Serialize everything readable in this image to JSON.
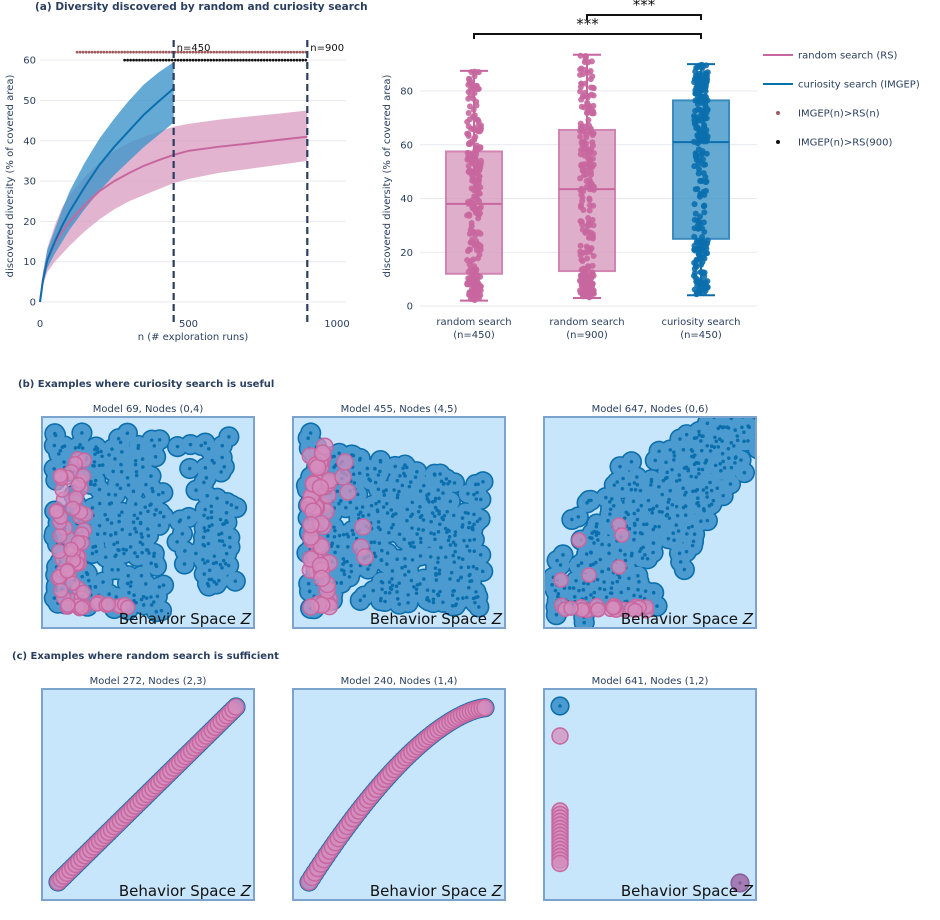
{
  "colors": {
    "rs": "#c8679f",
    "rs_fill": "#d89bbf",
    "imgep": "#0b6fae",
    "imgep_fill": "#3f95c9",
    "dot_rs": "#9e5a5a",
    "dot_900": "#111111",
    "panel_bg": "#c7e5fb",
    "panel_border": "#7ba3cd",
    "grid": "#e6e9ef",
    "text": "#2a3f5f",
    "vline": "#2a3f5f"
  },
  "section_a": {
    "title": "(a) Diversity discovered by random and curiosity search"
  },
  "section_b": {
    "title": "(b) Examples where curiosity search is useful"
  },
  "section_c": {
    "title": "(c) Examples where random search is sufficient"
  },
  "legend": [
    {
      "label": "random search (RS)",
      "marker": "line",
      "color": "#c8679f"
    },
    {
      "label": "curiosity search (IMGEP)",
      "marker": "line",
      "color": "#0b6fae"
    },
    {
      "label": "IMGEP(n)>RS(n)",
      "marker": "dot",
      "color": "#9e5a5a"
    },
    {
      "label": "IMGEP(n)>RS(900)",
      "marker": "dot",
      "color": "#111111"
    }
  ],
  "chart_data": [
    {
      "type": "line",
      "xlabel": "n (# exploration runs)",
      "ylabel": "discovered diversity (% of covered area)",
      "xlim": [
        0,
        1000
      ],
      "ylim": [
        0,
        65
      ],
      "x_ticks": [
        0,
        500,
        1000
      ],
      "y_ticks": [
        0,
        10,
        20,
        30,
        40,
        50,
        60
      ],
      "grid": true,
      "vlines": [
        {
          "x": 450,
          "label": "n=450"
        },
        {
          "x": 900,
          "label": "n=900"
        }
      ],
      "series": [
        {
          "name": "random search (RS)",
          "x": [
            0,
            10,
            25,
            50,
            75,
            100,
            150,
            200,
            250,
            300,
            350,
            400,
            450,
            500,
            600,
            700,
            800,
            900
          ],
          "mean": [
            0,
            5.5,
            10.5,
            14.5,
            17.5,
            20,
            24,
            27.5,
            30,
            32,
            33.8,
            35.2,
            36.5,
            37.5,
            38.5,
            39.3,
            40.2,
            41
          ],
          "lower": [
            0,
            4,
            7.5,
            10,
            12,
            14,
            17.5,
            20.5,
            23,
            25,
            26.5,
            28,
            29.5,
            30.5,
            32,
            33,
            34,
            35
          ],
          "upper": [
            0,
            7.5,
            13.5,
            19,
            23.5,
            26.5,
            31,
            34.5,
            37.5,
            39.5,
            41,
            42.3,
            43.5,
            44.2,
            45.2,
            46,
            46.7,
            47.5
          ]
        },
        {
          "name": "curiosity search (IMGEP)",
          "x": [
            0,
            10,
            25,
            50,
            75,
            100,
            150,
            200,
            250,
            300,
            350,
            400,
            450
          ],
          "mean": [
            0,
            5.5,
            10.5,
            15,
            19,
            22.5,
            28.5,
            34,
            38.5,
            42.5,
            46.5,
            49.8,
            53
          ],
          "lower": [
            0,
            4.5,
            8.5,
            12,
            15,
            18,
            23,
            27.5,
            31.5,
            35,
            38.5,
            41.5,
            44.5
          ],
          "upper": [
            0,
            7,
            13,
            18,
            23,
            27.5,
            34.5,
            40.5,
            45.5,
            50,
            54,
            57,
            59.5
          ]
        }
      ],
      "significance_rows": [
        {
          "name": "IMGEP(n)>RS(n)",
          "y": 62,
          "x_start": 125,
          "x_end": 900
        },
        {
          "name": "IMGEP(n)>RS(900)",
          "y": 60,
          "x_start": 285,
          "x_end": 900
        }
      ]
    },
    {
      "type": "box",
      "ylabel": "discovered diversity (% of covered area)",
      "ylim": [
        0,
        90
      ],
      "y_ticks": [
        0,
        20,
        40,
        60,
        80
      ],
      "grid": true,
      "groups": [
        {
          "label_line1": "random search",
          "label_line2": "(n=450)",
          "min": 2,
          "q1": 12,
          "median": 38,
          "q3": 57.5,
          "max": 87.5,
          "color": "#c8679f"
        },
        {
          "label_line1": "random search",
          "label_line2": "(n=900)",
          "min": 3,
          "q1": 13,
          "median": 43.5,
          "q3": 65.5,
          "max": 93.5,
          "color": "#c8679f"
        },
        {
          "label_line1": "curiosity search",
          "label_line2": "(n=450)",
          "min": 4,
          "q1": 25,
          "median": 61,
          "q3": 76.5,
          "max": 90,
          "color": "#0b6fae"
        }
      ],
      "significance": [
        {
          "from": 0,
          "to": 2,
          "label": "***"
        },
        {
          "from": 1,
          "to": 2,
          "label": "***"
        }
      ]
    }
  ],
  "behavior_axis_label": "Behavior Space",
  "behavior_axis_var": "Z",
  "panels_b": [
    {
      "title": "Model 69, Nodes (0,4)"
    },
    {
      "title": "Model 455, Nodes (4,5)"
    },
    {
      "title": "Model 647, Nodes (0,6)"
    }
  ],
  "panels_c": [
    {
      "title": "Model 272, Nodes (2,3)"
    },
    {
      "title": "Model 240, Nodes (1,4)"
    },
    {
      "title": "Model 641, Nodes (1,2)"
    }
  ]
}
